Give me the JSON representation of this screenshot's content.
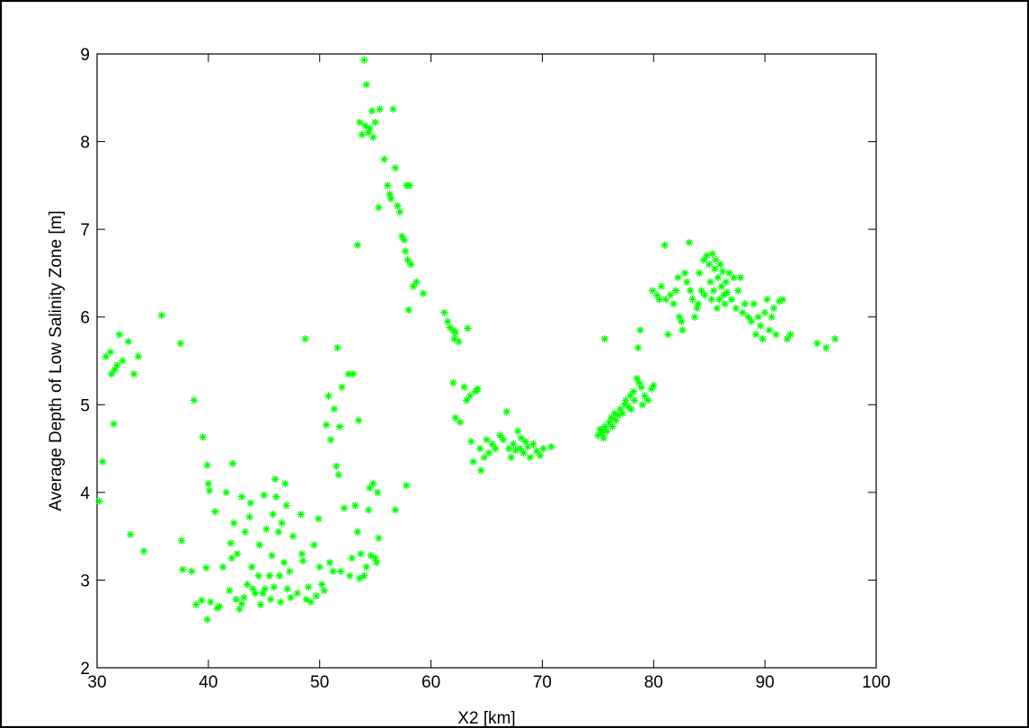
{
  "chart_data": {
    "type": "scatter",
    "title": "",
    "xlabel": "X2 [km]",
    "ylabel": "Average Depth of Low Salinity Zone [m]",
    "xlim": [
      30,
      100
    ],
    "ylim": [
      2,
      9
    ],
    "xticks": [
      30,
      40,
      50,
      60,
      70,
      80,
      90,
      100
    ],
    "yticks": [
      2,
      3,
      4,
      5,
      6,
      7,
      8,
      9
    ],
    "grid": false,
    "legend": "none",
    "marker": "*",
    "color": "#00ff00",
    "series": [
      {
        "points": [
          [
            30.2,
            3.9
          ],
          [
            30.5,
            4.35
          ],
          [
            30.8,
            5.55
          ],
          [
            31.2,
            5.6
          ],
          [
            31.3,
            5.35
          ],
          [
            31.5,
            4.78
          ],
          [
            31.6,
            5.4
          ],
          [
            31.8,
            5.45
          ],
          [
            32.0,
            5.8
          ],
          [
            32.3,
            5.5
          ],
          [
            32.8,
            5.72
          ],
          [
            33.0,
            3.52
          ],
          [
            33.3,
            5.35
          ],
          [
            33.7,
            5.55
          ],
          [
            34.2,
            3.33
          ],
          [
            35.8,
            6.02
          ],
          [
            37.5,
            5.7
          ],
          [
            37.6,
            3.45
          ],
          [
            37.7,
            3.12
          ],
          [
            38.5,
            3.1
          ],
          [
            38.7,
            5.05
          ],
          [
            38.9,
            2.72
          ],
          [
            39.4,
            2.77
          ],
          [
            39.5,
            4.63
          ],
          [
            39.8,
            3.14
          ],
          [
            39.9,
            2.55
          ],
          [
            39.9,
            4.31
          ],
          [
            40.0,
            4.1
          ],
          [
            40.1,
            4.02
          ],
          [
            40.2,
            2.75
          ],
          [
            40.6,
            3.78
          ],
          [
            40.8,
            2.68
          ],
          [
            41.0,
            2.7
          ],
          [
            41.3,
            3.15
          ],
          [
            41.6,
            4.0
          ],
          [
            41.9,
            2.88
          ],
          [
            42.0,
            3.42
          ],
          [
            42.1,
            3.25
          ],
          [
            42.2,
            4.33
          ],
          [
            42.3,
            3.65
          ],
          [
            42.5,
            2.78
          ],
          [
            42.6,
            3.3
          ],
          [
            42.8,
            2.67
          ],
          [
            43.0,
            2.73
          ],
          [
            43.0,
            3.95
          ],
          [
            43.2,
            2.8
          ],
          [
            43.3,
            3.55
          ],
          [
            43.5,
            2.95
          ],
          [
            43.7,
            3.72
          ],
          [
            43.8,
            3.88
          ],
          [
            43.9,
            3.15
          ],
          [
            44.0,
            2.9
          ],
          [
            44.2,
            2.85
          ],
          [
            44.5,
            3.05
          ],
          [
            44.6,
            3.4
          ],
          [
            44.7,
            2.72
          ],
          [
            44.9,
            2.85
          ],
          [
            45.0,
            3.97
          ],
          [
            45.1,
            2.9
          ],
          [
            45.2,
            3.58
          ],
          [
            45.5,
            3.05
          ],
          [
            45.6,
            2.78
          ],
          [
            45.7,
            3.28
          ],
          [
            45.8,
            3.75
          ],
          [
            45.9,
            2.92
          ],
          [
            46.0,
            4.15
          ],
          [
            46.1,
            3.95
          ],
          [
            46.3,
            3.55
          ],
          [
            46.4,
            3.05
          ],
          [
            46.5,
            2.75
          ],
          [
            46.6,
            3.65
          ],
          [
            46.8,
            3.2
          ],
          [
            46.9,
            4.1
          ],
          [
            47.0,
            3.85
          ],
          [
            47.1,
            2.9
          ],
          [
            47.3,
            3.1
          ],
          [
            47.4,
            2.8
          ],
          [
            47.6,
            3.5
          ],
          [
            48.0,
            2.85
          ],
          [
            48.3,
            3.75
          ],
          [
            48.4,
            3.3
          ],
          [
            48.5,
            3.22
          ],
          [
            48.7,
            5.75
          ],
          [
            48.8,
            2.78
          ],
          [
            49.0,
            2.92
          ],
          [
            49.2,
            2.75
          ],
          [
            49.5,
            3.4
          ],
          [
            49.7,
            2.82
          ],
          [
            49.9,
            3.7
          ],
          [
            50.0,
            3.15
          ],
          [
            50.2,
            2.95
          ],
          [
            50.4,
            2.88
          ],
          [
            50.6,
            4.77
          ],
          [
            50.8,
            5.1
          ],
          [
            50.9,
            3.2
          ],
          [
            51.0,
            4.6
          ],
          [
            51.2,
            3.1
          ],
          [
            51.3,
            4.95
          ],
          [
            51.5,
            4.3
          ],
          [
            51.6,
            5.65
          ],
          [
            51.7,
            4.2
          ],
          [
            51.8,
            4.75
          ],
          [
            51.9,
            3.1
          ],
          [
            52.0,
            5.2
          ],
          [
            52.2,
            3.82
          ],
          [
            52.6,
            5.35
          ],
          [
            52.7,
            3.05
          ],
          [
            52.9,
            3.25
          ],
          [
            53.0,
            5.35
          ],
          [
            53.2,
            3.85
          ],
          [
            53.4,
            3.55
          ],
          [
            53.5,
            4.82
          ],
          [
            53.6,
            3.02
          ],
          [
            53.7,
            3.3
          ],
          [
            54.0,
            3.05
          ],
          [
            54.2,
            3.15
          ],
          [
            54.4,
            3.8
          ],
          [
            54.5,
            4.05
          ],
          [
            54.6,
            3.28
          ],
          [
            54.8,
            4.1
          ],
          [
            55.0,
            3.25
          ],
          [
            55.1,
            3.2
          ],
          [
            55.2,
            4.0
          ],
          [
            55.3,
            3.48
          ],
          [
            56.8,
            3.8
          ],
          [
            57.8,
            4.08
          ],
          [
            53.4,
            6.82
          ],
          [
            53.6,
            8.22
          ],
          [
            53.8,
            8.08
          ],
          [
            54.0,
            8.93
          ],
          [
            54.1,
            8.18
          ],
          [
            54.2,
            8.65
          ],
          [
            54.4,
            8.1
          ],
          [
            54.5,
            8.15
          ],
          [
            54.7,
            8.35
          ],
          [
            54.8,
            8.05
          ],
          [
            55.0,
            8.22
          ],
          [
            55.3,
            7.25
          ],
          [
            55.4,
            8.37
          ],
          [
            55.8,
            7.8
          ],
          [
            56.1,
            7.5
          ],
          [
            56.3,
            7.4
          ],
          [
            56.4,
            7.35
          ],
          [
            56.6,
            8.37
          ],
          [
            56.8,
            7.7
          ],
          [
            57.0,
            7.27
          ],
          [
            57.2,
            7.2
          ],
          [
            57.4,
            6.92
          ],
          [
            57.6,
            6.88
          ],
          [
            57.7,
            6.75
          ],
          [
            57.8,
            7.5
          ],
          [
            57.9,
            6.65
          ],
          [
            58.0,
            6.08
          ],
          [
            58.1,
            7.5
          ],
          [
            58.2,
            6.6
          ],
          [
            58.4,
            6.35
          ],
          [
            58.7,
            6.4
          ],
          [
            59.3,
            6.27
          ],
          [
            61.2,
            6.05
          ],
          [
            61.5,
            5.95
          ],
          [
            61.7,
            5.88
          ],
          [
            62.0,
            5.85
          ],
          [
            62.1,
            5.75
          ],
          [
            62.2,
            5.82
          ],
          [
            62.5,
            5.72
          ],
          [
            63.3,
            5.87
          ],
          [
            62.0,
            5.25
          ],
          [
            62.2,
            4.85
          ],
          [
            62.6,
            4.8
          ],
          [
            63.0,
            5.2
          ],
          [
            63.2,
            5.05
          ],
          [
            63.5,
            5.1
          ],
          [
            63.6,
            4.58
          ],
          [
            63.8,
            4.35
          ],
          [
            64.0,
            5.15
          ],
          [
            64.2,
            5.18
          ],
          [
            64.4,
            4.5
          ],
          [
            64.5,
            4.25
          ],
          [
            64.8,
            4.4
          ],
          [
            65.0,
            4.6
          ],
          [
            65.2,
            4.45
          ],
          [
            65.5,
            4.55
          ],
          [
            65.8,
            4.5
          ],
          [
            66.2,
            4.65
          ],
          [
            66.5,
            4.6
          ],
          [
            66.8,
            4.92
          ],
          [
            67.0,
            4.5
          ],
          [
            67.2,
            4.4
          ],
          [
            67.4,
            4.55
          ],
          [
            67.6,
            4.48
          ],
          [
            67.8,
            4.7
          ],
          [
            68.0,
            4.5
          ],
          [
            68.1,
            4.62
          ],
          [
            68.3,
            4.45
          ],
          [
            68.5,
            4.58
          ],
          [
            68.7,
            4.52
          ],
          [
            68.9,
            4.4
          ],
          [
            69.2,
            4.55
          ],
          [
            69.5,
            4.47
          ],
          [
            69.8,
            4.42
          ],
          [
            70.1,
            4.5
          ],
          [
            70.8,
            4.52
          ],
          [
            75.0,
            4.65
          ],
          [
            75.2,
            4.72
          ],
          [
            75.4,
            4.68
          ],
          [
            75.5,
            4.62
          ],
          [
            75.6,
            4.75
          ],
          [
            75.8,
            4.7
          ],
          [
            76.0,
            4.8
          ],
          [
            76.2,
            4.85
          ],
          [
            76.3,
            4.75
          ],
          [
            76.5,
            4.9
          ],
          [
            76.6,
            4.82
          ],
          [
            76.8,
            4.88
          ],
          [
            77.0,
            4.95
          ],
          [
            77.2,
            4.9
          ],
          [
            77.4,
            5.0
          ],
          [
            77.5,
            5.05
          ],
          [
            77.7,
            4.98
          ],
          [
            77.9,
            5.1
          ],
          [
            78.0,
            4.95
          ],
          [
            78.2,
            5.15
          ],
          [
            78.3,
            5.05
          ],
          [
            78.5,
            5.3
          ],
          [
            78.7,
            5.25
          ],
          [
            78.9,
            5.2
          ],
          [
            79.0,
            5.0
          ],
          [
            79.2,
            5.1
          ],
          [
            79.5,
            5.05
          ],
          [
            79.8,
            5.18
          ],
          [
            80.0,
            5.22
          ],
          [
            75.6,
            5.75
          ],
          [
            78.6,
            5.65
          ],
          [
            78.8,
            5.85
          ],
          [
            79.9,
            6.3
          ],
          [
            80.3,
            6.25
          ],
          [
            80.5,
            6.2
          ],
          [
            80.7,
            6.35
          ],
          [
            81.0,
            6.82
          ],
          [
            81.1,
            6.2
          ],
          [
            81.3,
            5.8
          ],
          [
            81.5,
            6.25
          ],
          [
            81.8,
            6.15
          ],
          [
            82.0,
            6.3
          ],
          [
            82.2,
            6.45
          ],
          [
            82.3,
            6.0
          ],
          [
            82.5,
            5.95
          ],
          [
            82.6,
            5.85
          ],
          [
            82.8,
            6.5
          ],
          [
            83.0,
            6.4
          ],
          [
            83.2,
            6.85
          ],
          [
            83.3,
            6.3
          ],
          [
            83.5,
            6.2
          ],
          [
            83.7,
            6.0
          ],
          [
            83.9,
            6.1
          ],
          [
            84.0,
            6.15
          ],
          [
            84.1,
            6.5
          ],
          [
            84.3,
            6.3
          ],
          [
            84.5,
            6.65
          ],
          [
            84.6,
            6.25
          ],
          [
            84.8,
            6.7
          ],
          [
            85.0,
            6.6
          ],
          [
            85.1,
            6.4
          ],
          [
            85.2,
            6.2
          ],
          [
            85.3,
            6.72
          ],
          [
            85.4,
            6.3
          ],
          [
            85.5,
            6.55
          ],
          [
            85.6,
            6.65
          ],
          [
            85.7,
            6.1
          ],
          [
            85.8,
            6.45
          ],
          [
            85.9,
            6.2
          ],
          [
            86.0,
            6.6
          ],
          [
            86.1,
            6.35
          ],
          [
            86.2,
            6.52
          ],
          [
            86.3,
            6.25
          ],
          [
            86.4,
            6.15
          ],
          [
            86.5,
            6.4
          ],
          [
            86.6,
            6.28
          ],
          [
            86.8,
            6.5
          ],
          [
            87.0,
            6.2
          ],
          [
            87.2,
            6.45
          ],
          [
            87.4,
            6.1
          ],
          [
            87.6,
            6.3
          ],
          [
            87.8,
            6.45
          ],
          [
            88.0,
            6.05
          ],
          [
            88.2,
            6.15
          ],
          [
            88.5,
            6.0
          ],
          [
            88.8,
            5.95
          ],
          [
            89.0,
            6.15
          ],
          [
            89.2,
            5.8
          ],
          [
            89.4,
            6.0
          ],
          [
            89.6,
            5.9
          ],
          [
            89.8,
            5.75
          ],
          [
            90.0,
            6.05
          ],
          [
            90.2,
            6.2
          ],
          [
            90.4,
            5.85
          ],
          [
            90.6,
            6.0
          ],
          [
            90.8,
            6.1
          ],
          [
            91.0,
            5.8
          ],
          [
            91.3,
            6.18
          ],
          [
            91.6,
            6.2
          ],
          [
            92.0,
            5.75
          ],
          [
            92.3,
            5.8
          ],
          [
            94.7,
            5.7
          ],
          [
            95.5,
            5.65
          ],
          [
            96.3,
            5.75
          ]
        ]
      }
    ]
  }
}
